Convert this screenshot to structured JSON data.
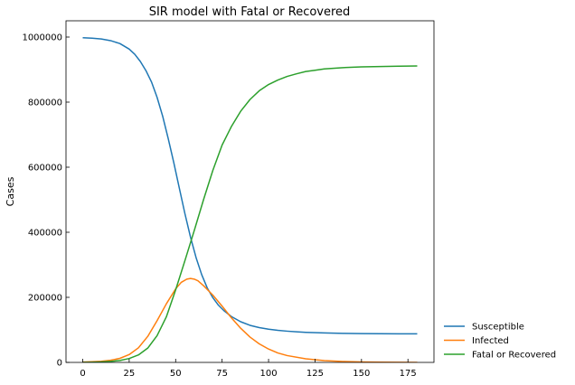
{
  "chart_data": {
    "type": "line",
    "title": "SIR model with Fatal or Recovered",
    "xlabel": "",
    "ylabel": "Cases",
    "xlim": [
      -9,
      189
    ],
    "ylim": [
      0,
      1050000
    ],
    "x_ticks": [
      0,
      25,
      50,
      75,
      100,
      125,
      150,
      175
    ],
    "x_tick_labels": [
      "0",
      "25",
      "50",
      "75",
      "100",
      "125",
      "150",
      "175"
    ],
    "y_ticks": [
      0,
      200000,
      400000,
      600000,
      800000,
      1000000
    ],
    "y_tick_labels": [
      "0",
      "200000",
      "400000",
      "600000",
      "800000",
      "1000000"
    ],
    "grid": false,
    "legend_position": "outside-right-bottom",
    "series": [
      {
        "name": "Susceptible",
        "color": "#1f77b4",
        "x": [
          0,
          5,
          10,
          15,
          20,
          25,
          28,
          31,
          34,
          37,
          40,
          43,
          46,
          49,
          52,
          55,
          58,
          61,
          64,
          67,
          70,
          73,
          76,
          80,
          85,
          90,
          95,
          100,
          105,
          110,
          115,
          120,
          130,
          140,
          150,
          160,
          170,
          180
        ],
        "values": [
          998000,
          996500,
          994000,
          989000,
          980000,
          963000,
          947000,
          925000,
          897000,
          862000,
          815000,
          757000,
          688000,
          614000,
          535000,
          457000,
          385000,
          322000,
          270000,
          229000,
          199000,
          176000,
          159000,
          141000,
          125000,
          114000,
          107000,
          102000,
          98500,
          96000,
          94000,
          92500,
          90500,
          89300,
          88700,
          88300,
          88000,
          87700
        ]
      },
      {
        "name": "Infected",
        "color": "#ff7f0e",
        "x": [
          0,
          5,
          10,
          15,
          20,
          25,
          30,
          35,
          40,
          45,
          50,
          53,
          56,
          58,
          60,
          62,
          65,
          70,
          75,
          80,
          85,
          90,
          95,
          100,
          105,
          110,
          120,
          130,
          140,
          150,
          160,
          170,
          180
        ],
        "values": [
          1000,
          2000,
          3500,
          6500,
          12500,
          24000,
          45000,
          80000,
          128000,
          180000,
          226000,
          246000,
          256000,
          258000,
          256000,
          251000,
          236000,
          207000,
          173000,
          137000,
          105000,
          78000,
          57000,
          41000,
          29000,
          21000,
          11000,
          5500,
          2800,
          1400,
          700,
          350,
          180
        ]
      },
      {
        "name": "Fatal or Recovered",
        "color": "#2ca02c",
        "x": [
          0,
          5,
          10,
          15,
          20,
          25,
          30,
          35,
          40,
          45,
          50,
          55,
          60,
          65,
          70,
          75,
          80,
          85,
          90,
          95,
          100,
          105,
          110,
          115,
          120,
          125,
          130,
          140,
          150,
          160,
          170,
          180
        ],
        "values": [
          0,
          500,
          1500,
          3000,
          6000,
          12000,
          23000,
          44000,
          82000,
          140000,
          223000,
          313000,
          405000,
          500000,
          590000,
          668000,
          725000,
          772000,
          808000,
          835000,
          854000,
          868000,
          879000,
          887000,
          894000,
          898000,
          902000,
          906000,
          908500,
          909500,
          910500,
          911000
        ]
      }
    ]
  }
}
